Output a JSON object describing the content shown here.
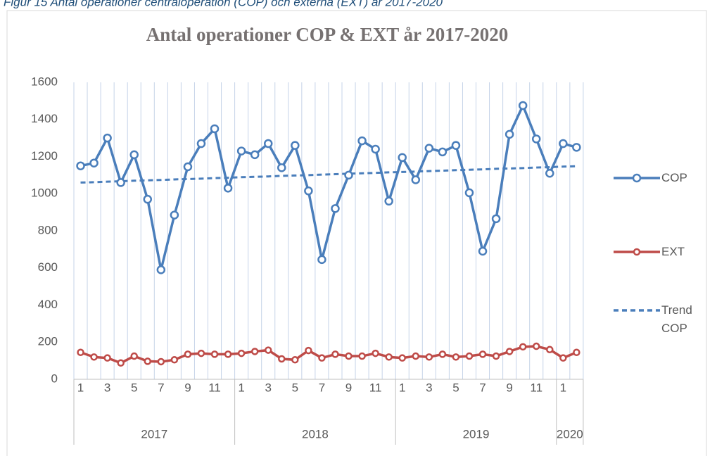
{
  "caption": "Figur 15 Antal operationer centraloperation (COP) och externa (EXT) år 2017-2020",
  "chart_data": {
    "type": "line",
    "title": "Antal operationer COP & EXT år 2017-2020",
    "categories": [
      "1",
      null,
      "3",
      null,
      "5",
      null,
      "7",
      null,
      "9",
      null,
      "11",
      null,
      "1",
      null,
      "3",
      null,
      "5",
      null,
      "7",
      null,
      "9",
      null,
      "11",
      null,
      "1",
      null,
      "3",
      null,
      "5",
      null,
      "7",
      null,
      "9",
      null,
      "11",
      null,
      "1",
      null
    ],
    "x_groups": [
      {
        "name": "2017",
        "size": 12
      },
      {
        "name": "2018",
        "size": 12
      },
      {
        "name": "2019",
        "size": 12
      },
      {
        "name": "2020",
        "size": 2
      }
    ],
    "series": [
      {
        "name": "COP",
        "color": "#4a7ebb",
        "marker": true,
        "dashed": false,
        "values": [
          1150,
          1165,
          1300,
          1060,
          1210,
          970,
          590,
          885,
          1145,
          1270,
          1350,
          1030,
          1230,
          1210,
          1270,
          1140,
          1260,
          1015,
          645,
          920,
          1100,
          1285,
          1240,
          960,
          1195,
          1075,
          1245,
          1225,
          1260,
          1005,
          690,
          865,
          1320,
          1475,
          1295,
          1110,
          1270,
          1250
        ]
      },
      {
        "name": "EXT",
        "color": "#be4b48",
        "marker": true,
        "dashed": false,
        "values": [
          145,
          120,
          115,
          88,
          125,
          97,
          95,
          105,
          135,
          140,
          135,
          135,
          140,
          150,
          157,
          110,
          105,
          155,
          115,
          135,
          125,
          125,
          140,
          120,
          115,
          125,
          120,
          135,
          120,
          125,
          135,
          125,
          150,
          175,
          178,
          160,
          115,
          145
        ]
      },
      {
        "name": "Trend COP",
        "color": "#4a7ebb",
        "marker": false,
        "dashed": true,
        "values": [
          1060,
          1062,
          1065,
          1067,
          1070,
          1072,
          1074,
          1077,
          1079,
          1081,
          1084,
          1086,
          1089,
          1091,
          1093,
          1096,
          1098,
          1100,
          1103,
          1105,
          1108,
          1110,
          1112,
          1115,
          1117,
          1119,
          1122,
          1124,
          1127,
          1129,
          1131,
          1134,
          1136,
          1138,
          1141,
          1143,
          1146,
          1148
        ]
      }
    ],
    "ylim": [
      0,
      1600
    ],
    "yticks": [
      0,
      200,
      400,
      600,
      800,
      1000,
      1200,
      1400,
      1600
    ],
    "grid": "x",
    "legend": "right"
  }
}
